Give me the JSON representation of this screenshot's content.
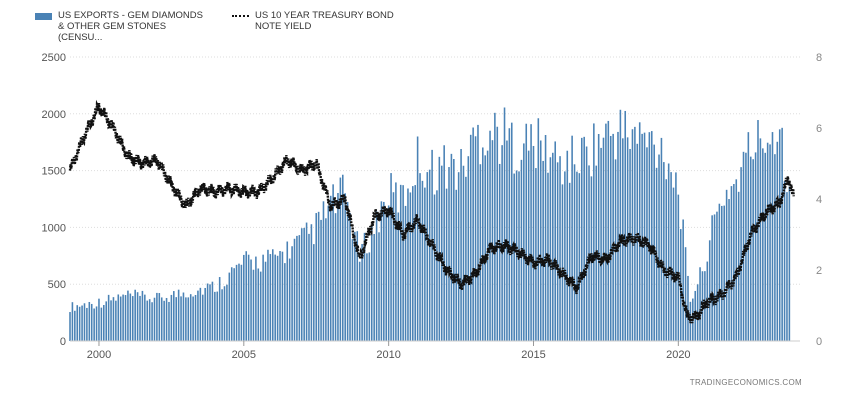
{
  "chart_data": {
    "type": "bar",
    "title": "",
    "legend_position": "top-left",
    "grid": true,
    "colors": {
      "bars": "#4a82b5",
      "line": "#111111",
      "axis_text": "#555555",
      "grid": "#dddddd"
    },
    "series": [
      {
        "name": "US EXPORTS - GEM DIAMONDS & OTHER GEM STONES (CENSU...",
        "chart_type": "bar",
        "axis": "left",
        "x": [
          1999.0,
          2000.0,
          2001.0,
          2002.0,
          2003.0,
          2004.0,
          2005.0,
          2006.0,
          2007.0,
          2007.5,
          2008.0,
          2008.5,
          2009.0,
          2009.5,
          2010.0,
          2010.5,
          2011.0,
          2011.5,
          2012.0,
          2012.5,
          2013.0,
          2013.5,
          2014.0,
          2014.5,
          2015.0,
          2015.5,
          2016.0,
          2016.5,
          2017.0,
          2017.5,
          2018.0,
          2018.5,
          2019.0,
          2019.5,
          2020.0,
          2020.4,
          2020.8,
          2021.2,
          2021.6,
          2022.0,
          2022.5,
          2023.0,
          2023.5,
          2023.8
        ],
        "values": [
          300,
          340,
          400,
          370,
          430,
          480,
          690,
          720,
          880,
          1000,
          1200,
          1300,
          750,
          1000,
          1300,
          1250,
          1600,
          1500,
          1550,
          1500,
          1800,
          1850,
          1800,
          1700,
          1750,
          1650,
          1550,
          1600,
          1700,
          1800,
          1850,
          1800,
          1750,
          1700,
          1350,
          350,
          600,
          1000,
          1300,
          1400,
          1700,
          1800,
          1900,
          1450
        ]
      },
      {
        "name": "US 10 YEAR TREASURY BOND NOTE YIELD",
        "chart_type": "line",
        "axis": "right",
        "x": [
          1999.0,
          1999.5,
          2000.0,
          2000.5,
          2001.0,
          2001.5,
          2002.0,
          2002.5,
          2003.0,
          2003.5,
          2004.0,
          2004.5,
          2005.0,
          2005.5,
          2006.0,
          2006.5,
          2007.0,
          2007.5,
          2008.0,
          2008.5,
          2009.0,
          2009.5,
          2010.0,
          2010.5,
          2011.0,
          2011.5,
          2012.0,
          2012.5,
          2013.0,
          2013.5,
          2014.0,
          2014.5,
          2015.0,
          2015.5,
          2016.0,
          2016.5,
          2017.0,
          2017.5,
          2018.0,
          2018.5,
          2019.0,
          2019.5,
          2020.0,
          2020.3,
          2020.6,
          2021.0,
          2021.5,
          2022.0,
          2022.5,
          2023.0,
          2023.5,
          2023.8,
          2024.0
        ],
        "values": [
          4.8,
          5.8,
          6.6,
          6.0,
          5.2,
          5.0,
          5.1,
          4.4,
          3.8,
          4.3,
          4.2,
          4.3,
          4.2,
          4.2,
          4.6,
          5.1,
          4.8,
          5.0,
          3.8,
          4.0,
          2.3,
          3.5,
          3.7,
          3.0,
          3.4,
          2.7,
          2.0,
          1.6,
          1.9,
          2.6,
          2.7,
          2.5,
          2.2,
          2.3,
          1.9,
          1.5,
          2.4,
          2.3,
          2.8,
          2.9,
          2.7,
          2.0,
          1.8,
          0.7,
          0.65,
          1.1,
          1.3,
          1.8,
          3.0,
          3.6,
          3.9,
          4.6,
          4.0
        ]
      }
    ],
    "x_axis": {
      "range": [
        1999.0,
        2024.2
      ],
      "ticks": [
        2000,
        2005,
        2010,
        2015,
        2020
      ],
      "tick_labels": [
        "2000",
        "2005",
        "2010",
        "2015",
        "2020"
      ]
    },
    "y_left": {
      "range": [
        0,
        2500
      ],
      "ticks": [
        0,
        500,
        1000,
        1500,
        2000,
        2500
      ],
      "tick_labels": [
        "0",
        "500",
        "1000",
        "1500",
        "2000",
        "2500"
      ]
    },
    "y_right": {
      "range": [
        0,
        8
      ],
      "ticks": [
        0,
        2,
        4,
        6,
        8
      ],
      "tick_labels": [
        "0",
        "2",
        "4",
        "6",
        "8"
      ]
    }
  },
  "legend": {
    "bar_label": "US EXPORTS - GEM DIAMONDS & OTHER GEM STONES (CENSU...",
    "line_label": "US 10 YEAR TREASURY BOND NOTE YIELD"
  },
  "source": "TRADINGECONOMICS.COM"
}
